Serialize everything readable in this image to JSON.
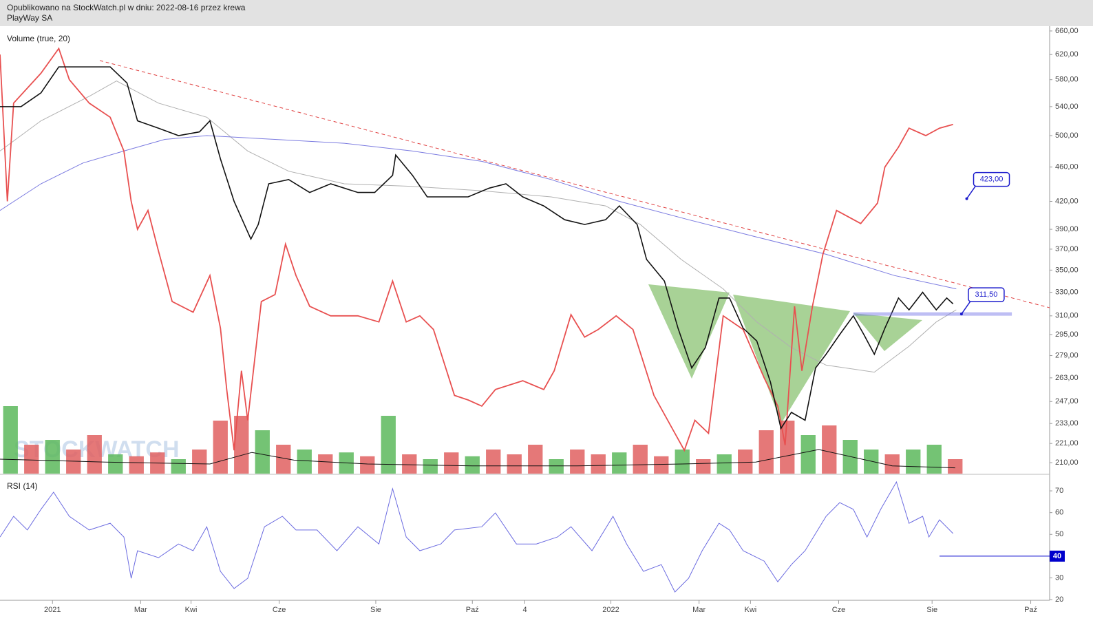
{
  "header": {
    "published": "Opublikowano na StockWatch.pl w dniu: 2022-08-16 przez krewa",
    "name": "PlayWay SA"
  },
  "chart_data": [
    {
      "type": "line",
      "indicator_label": "Volume (true, 20)",
      "watermark": "STOCKWATCH",
      "log_scale": true,
      "xlim": [
        0,
        100
      ],
      "ylim": [
        204,
        666
      ],
      "yticks": [
        {
          "value": 660,
          "label": "660,00"
        },
        {
          "value": 620,
          "label": "620,00"
        },
        {
          "value": 580,
          "label": "580,00"
        },
        {
          "value": 540,
          "label": "540,00"
        },
        {
          "value": 500,
          "label": "500,00"
        },
        {
          "value": 460,
          "label": "460,00"
        },
        {
          "value": 420,
          "label": "420,00"
        },
        {
          "value": 390,
          "label": "390,00"
        },
        {
          "value": 370,
          "label": "370,00"
        },
        {
          "value": 350,
          "label": "350,00"
        },
        {
          "value": 330,
          "label": "330,00"
        },
        {
          "value": 310,
          "label": "310,00"
        },
        {
          "value": 295,
          "label": "295,00"
        },
        {
          "value": 279,
          "label": "279,00"
        },
        {
          "value": 263,
          "label": "263,00"
        },
        {
          "value": 247,
          "label": "247,00"
        },
        {
          "value": 233,
          "label": "233,00"
        },
        {
          "value": 221,
          "label": "221,00"
        },
        {
          "value": 210,
          "label": "210,00"
        }
      ],
      "series": [
        {
          "color": "#b0b0b0",
          "width": 1,
          "x": [
            0,
            3.9,
            8.5,
            11.1,
            15.1,
            19.7,
            23.6,
            27.5,
            32.8,
            39.3,
            45.9,
            52.5,
            57.7,
            61.0,
            64.9,
            68.9,
            72.1,
            75.4,
            78.7,
            83.3,
            86.6,
            89.2,
            91.1
          ],
          "values": [
            480,
            520,
            555,
            578,
            545,
            525,
            480,
            455,
            440,
            437,
            432,
            425,
            415,
            395,
            360,
            333,
            305,
            285,
            272,
            267,
            286,
            305,
            315
          ]
        },
        {
          "color": "#7a7ae0",
          "width": 1,
          "x": [
            0,
            3.9,
            7.9,
            11.8,
            15.7,
            19.7,
            26.2,
            32.8,
            39.3,
            45.9,
            52.5,
            59.0,
            65.6,
            72.1,
            78.7,
            85.2,
            91.1
          ],
          "values": [
            410,
            440,
            465,
            480,
            495,
            500,
            495,
            490,
            480,
            467,
            445,
            420,
            400,
            382,
            365,
            345,
            333
          ]
        },
        {
          "color": "#e85050",
          "width": 1.8,
          "x": [
            0,
            0.7,
            1.3,
            3.9,
            5.6,
            6.6,
            8.5,
            10.5,
            11.8,
            12.5,
            13.1,
            14.1,
            15.1,
            16.4,
            18.4,
            20.0,
            21.0,
            21.6,
            22.3,
            23.0,
            23.6,
            24.9,
            26.2,
            27.2,
            28.2,
            29.5,
            31.5,
            34.1,
            36.1,
            37.4,
            38.7,
            40.0,
            41.3,
            43.3,
            44.6,
            45.9,
            47.2,
            49.8,
            51.8,
            52.8,
            54.4,
            55.7,
            57.0,
            58.7,
            60.3,
            62.3,
            64.3,
            65.2,
            66.2,
            67.5,
            68.9,
            70.8,
            72.8,
            74.1,
            74.8,
            75.7,
            76.4,
            77.4,
            78.4,
            79.7,
            82.0,
            83.6,
            84.3,
            85.6,
            86.6,
            88.2,
            89.5,
            90.8
          ],
          "values": [
            620,
            420,
            545,
            590,
            630,
            580,
            545,
            525,
            480,
            420,
            390,
            410,
            368,
            322,
            313,
            345,
            300,
            255,
            217,
            268,
            235,
            322,
            328,
            375,
            345,
            318,
            310,
            310,
            305,
            340,
            305,
            310,
            299,
            251,
            248,
            244,
            255,
            261,
            255,
            268,
            311,
            293,
            299,
            310,
            299,
            251,
            227,
            217,
            235,
            227,
            310,
            299,
            263,
            244,
            220,
            318,
            268,
            318,
            365,
            410,
            396,
            418,
            460,
            485,
            510,
            500,
            510,
            515
          ]
        },
        {
          "color": "#111111",
          "width": 1.6,
          "x": [
            0,
            2.0,
            3.9,
            5.6,
            7.9,
            10.5,
            12.1,
            13.1,
            15.1,
            17.0,
            19.0,
            20.0,
            21.0,
            22.3,
            23.9,
            24.6,
            25.6,
            27.5,
            29.5,
            31.5,
            34.1,
            35.7,
            37.4,
            37.7,
            39.3,
            40.7,
            42.6,
            44.6,
            46.6,
            48.2,
            49.8,
            51.8,
            53.8,
            55.7,
            57.7,
            59.0,
            60.7,
            61.6,
            63.3,
            64.6,
            65.9,
            67.2,
            68.5,
            69.5,
            70.8,
            72.1,
            73.4,
            74.4,
            75.4,
            76.7,
            77.7,
            78.7,
            80.0,
            81.3,
            82.3,
            83.3,
            84.3,
            85.6,
            86.6,
            87.9,
            89.2,
            90.2,
            90.8
          ],
          "values": [
            540,
            540,
            560,
            600,
            600,
            600,
            575,
            520,
            510,
            500,
            505,
            520,
            470,
            420,
            380,
            395,
            440,
            445,
            430,
            440,
            430,
            430,
            450,
            475,
            450,
            425,
            425,
            425,
            435,
            440,
            425,
            415,
            400,
            395,
            400,
            415,
            395,
            360,
            340,
            300,
            270,
            285,
            325,
            325,
            300,
            290,
            260,
            230,
            240,
            235,
            270,
            280,
            295,
            310,
            295,
            280,
            300,
            325,
            315,
            330,
            315,
            325,
            320
          ]
        }
      ],
      "volume": {
        "ylim": [
          0,
          100
        ],
        "x": [
          1,
          3,
          5,
          7,
          9,
          11,
          13,
          15,
          17,
          19,
          21,
          23,
          25,
          27,
          29,
          31,
          33,
          35,
          37,
          39,
          41,
          43,
          45,
          47,
          49,
          51,
          53,
          55,
          57,
          59,
          61,
          63,
          65,
          67,
          69,
          71,
          73,
          75,
          77,
          79,
          81,
          83,
          85,
          87,
          89,
          91
        ],
        "values": [
          70,
          30,
          35,
          25,
          40,
          20,
          18,
          22,
          15,
          25,
          55,
          60,
          45,
          30,
          25,
          20,
          22,
          18,
          60,
          20,
          15,
          22,
          18,
          25,
          20,
          30,
          15,
          25,
          20,
          22,
          30,
          18,
          25,
          15,
          20,
          25,
          45,
          55,
          40,
          50,
          35,
          25,
          20,
          25,
          30,
          15
        ],
        "colors": [
          "#5cb85c",
          "#e06060",
          "#5cb85c",
          "#e06060",
          "#e06060",
          "#5cb85c",
          "#e06060",
          "#e06060",
          "#5cb85c",
          "#e06060",
          "#e06060",
          "#e06060",
          "#5cb85c",
          "#e06060",
          "#5cb85c",
          "#e06060",
          "#5cb85c",
          "#e06060",
          "#5cb85c",
          "#e06060",
          "#5cb85c",
          "#e06060",
          "#5cb85c",
          "#e06060",
          "#e06060",
          "#e06060",
          "#5cb85c",
          "#e06060",
          "#e06060",
          "#5cb85c",
          "#e06060",
          "#e06060",
          "#5cb85c",
          "#e06060",
          "#5cb85c",
          "#e06060",
          "#e06060",
          "#e06060",
          "#5cb85c",
          "#e06060",
          "#5cb85c",
          "#5cb85c",
          "#e06060",
          "#5cb85c",
          "#5cb85c",
          "#e06060"
        ],
        "ma": {
          "color": "#111111",
          "x": [
            0,
            10,
            20,
            24,
            28,
            35,
            45,
            55,
            65,
            72,
            78,
            85,
            91
          ],
          "values": [
            15,
            12,
            10,
            22,
            14,
            10,
            8,
            8,
            10,
            12,
            25,
            8,
            6
          ]
        }
      },
      "annotations": [
        {
          "label": "423,00",
          "value": 423,
          "x": 92.1
        },
        {
          "label": "311,50",
          "value": 311.5,
          "x": 91.6,
          "x_range": [
            81.3,
            96.4
          ]
        }
      ]
    },
    {
      "type": "line",
      "title": "RSI (14)",
      "xlim": [
        0,
        100
      ],
      "ylim": [
        19.7,
        77.3
      ],
      "yticks": [
        20,
        30,
        50,
        60,
        70
      ],
      "level": 40,
      "level_color": "#0000cc",
      "xticks": [
        {
          "value": 5.0,
          "label": "2021"
        },
        {
          "value": 13.4,
          "label": "Mar"
        },
        {
          "value": 18.2,
          "label": "Kwi"
        },
        {
          "value": 26.6,
          "label": "Cze"
        },
        {
          "value": 35.8,
          "label": "Sie"
        },
        {
          "value": 45.0,
          "label": "Paź"
        },
        {
          "value": 50.0,
          "label": "4"
        },
        {
          "value": 58.2,
          "label": "2022"
        },
        {
          "value": 66.6,
          "label": "Mar"
        },
        {
          "value": 71.5,
          "label": "Kwi"
        },
        {
          "value": 79.9,
          "label": "Cze"
        },
        {
          "value": 88.8,
          "label": "Sie"
        },
        {
          "value": 98.2,
          "label": "Paź"
        }
      ],
      "series": [
        {
          "color": "#6a6ae0",
          "x": [
            0,
            1.3,
            2.6,
            3.9,
            5.1,
            6.6,
            8.5,
            10.5,
            11.8,
            12.5,
            13.1,
            15.1,
            17.0,
            18.4,
            19.7,
            21.0,
            22.3,
            23.6,
            25.2,
            26.9,
            28.2,
            30.2,
            32.1,
            34.1,
            36.1,
            37.4,
            38.7,
            40.0,
            42.0,
            43.3,
            45.9,
            47.2,
            49.2,
            51.1,
            53.1,
            54.4,
            56.4,
            58.4,
            59.7,
            61.3,
            63.0,
            64.3,
            65.6,
            66.9,
            68.5,
            69.5,
            70.8,
            72.8,
            74.1,
            75.4,
            76.7,
            78.7,
            80.0,
            81.3,
            82.6,
            83.9,
            85.4,
            86.6,
            87.9,
            88.5,
            89.5,
            90.8
          ],
          "values": [
            48.8,
            58.3,
            52,
            61.5,
            69.4,
            58.3,
            52,
            55.1,
            48.8,
            29.8,
            42.5,
            39.3,
            45.6,
            42.5,
            53.5,
            33,
            25.1,
            29.8,
            53.5,
            58.3,
            52,
            52,
            42.5,
            53.5,
            45.6,
            71,
            48.8,
            42.5,
            45.6,
            52,
            53.5,
            59.9,
            45.6,
            45.6,
            48.8,
            53.5,
            42.5,
            58.3,
            45.6,
            33,
            36.1,
            23.5,
            29.8,
            42.5,
            55.1,
            52,
            42.5,
            37.7,
            28.2,
            36.1,
            42.5,
            58.3,
            64.6,
            61.5,
            48.8,
            61.5,
            74.1,
            55.1,
            58.3,
            48.8,
            56.7,
            50.4
          ]
        }
      ]
    }
  ]
}
